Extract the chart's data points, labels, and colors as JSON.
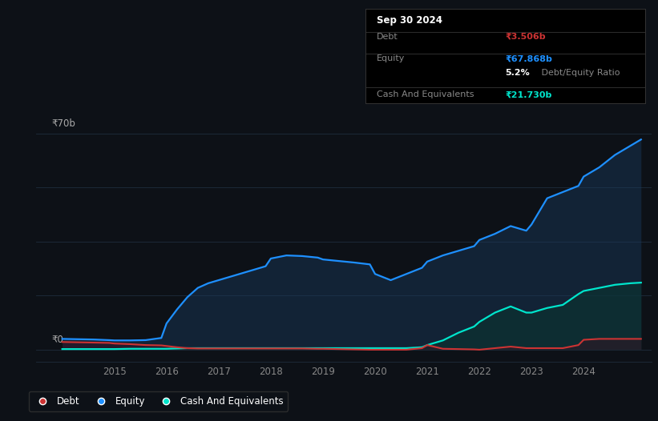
{
  "background_color": "#0d1117",
  "plot_bg_color": "#0d1117",
  "grid_color": "#1e2d3d",
  "title_box": {
    "date": "Sep 30 2024",
    "debt_label": "Debt",
    "debt_value": "₹3.506b",
    "debt_color": "#cc3333",
    "equity_label": "Equity",
    "equity_value": "₹67.868b",
    "equity_color": "#1e90ff",
    "ratio_bold": "5.2%",
    "ratio_normal": " Debt/Equity Ratio",
    "cash_label": "Cash And Equivalents",
    "cash_value": "₹21.730b",
    "cash_color": "#00e5cc"
  },
  "ylabel_top": "₹70b",
  "ylabel_zero": "₹0",
  "xlim": [
    2013.5,
    2025.3
  ],
  "ylim": [
    -4,
    75
  ],
  "xticks": [
    2015,
    2016,
    2017,
    2018,
    2019,
    2020,
    2021,
    2022,
    2023,
    2024
  ],
  "years": [
    2014.0,
    2014.3,
    2014.6,
    2014.9,
    2015.0,
    2015.3,
    2015.6,
    2015.9,
    2016.0,
    2016.2,
    2016.4,
    2016.6,
    2016.8,
    2017.0,
    2017.3,
    2017.6,
    2017.9,
    2018.0,
    2018.3,
    2018.6,
    2018.9,
    2019.0,
    2019.3,
    2019.6,
    2019.9,
    2020.0,
    2020.3,
    2020.6,
    2020.9,
    2021.0,
    2021.3,
    2021.6,
    2021.9,
    2022.0,
    2022.3,
    2022.6,
    2022.9,
    2023.0,
    2023.3,
    2023.6,
    2023.9,
    2024.0,
    2024.3,
    2024.6,
    2024.9,
    2025.1
  ],
  "equity": [
    3.5,
    3.4,
    3.3,
    3.1,
    3.0,
    3.0,
    3.1,
    3.8,
    8.5,
    13.0,
    17.0,
    20.0,
    21.5,
    22.5,
    24.0,
    25.5,
    27.0,
    29.5,
    30.5,
    30.3,
    29.8,
    29.2,
    28.7,
    28.2,
    27.6,
    24.5,
    22.5,
    24.5,
    26.5,
    28.5,
    30.5,
    32.0,
    33.5,
    35.5,
    37.5,
    40.0,
    38.5,
    40.5,
    49.0,
    51.0,
    53.0,
    56.0,
    59.0,
    63.0,
    66.0,
    68.0
  ],
  "debt": [
    2.5,
    2.4,
    2.3,
    2.2,
    2.0,
    1.8,
    1.5,
    1.4,
    1.2,
    0.8,
    0.5,
    0.4,
    0.4,
    0.4,
    0.4,
    0.4,
    0.4,
    0.4,
    0.4,
    0.4,
    0.3,
    0.3,
    0.2,
    0.1,
    0.0,
    0.0,
    0.0,
    0.0,
    0.5,
    1.5,
    0.3,
    0.2,
    0.1,
    0.0,
    0.5,
    1.0,
    0.5,
    0.5,
    0.5,
    0.5,
    1.5,
    3.2,
    3.5,
    3.5,
    3.5,
    3.5
  ],
  "cash": [
    0.2,
    0.2,
    0.2,
    0.2,
    0.2,
    0.3,
    0.3,
    0.3,
    0.3,
    0.4,
    0.5,
    0.5,
    0.5,
    0.5,
    0.5,
    0.5,
    0.5,
    0.5,
    0.5,
    0.5,
    0.5,
    0.5,
    0.5,
    0.5,
    0.5,
    0.5,
    0.5,
    0.5,
    0.8,
    1.5,
    3.0,
    5.5,
    7.5,
    9.0,
    12.0,
    14.0,
    12.0,
    12.0,
    13.5,
    14.5,
    18.0,
    19.0,
    20.0,
    21.0,
    21.5,
    21.7
  ],
  "equity_color": "#1e90ff",
  "equity_fill": "#1a3a5c",
  "debt_color": "#cc3333",
  "debt_fill": "#3a1020",
  "cash_color": "#00e5cc",
  "cash_fill": "#0a3530",
  "legend_items": [
    "Debt",
    "Equity",
    "Cash And Equivalents"
  ],
  "legend_colors": [
    "#cc3333",
    "#1e90ff",
    "#00e5cc"
  ]
}
